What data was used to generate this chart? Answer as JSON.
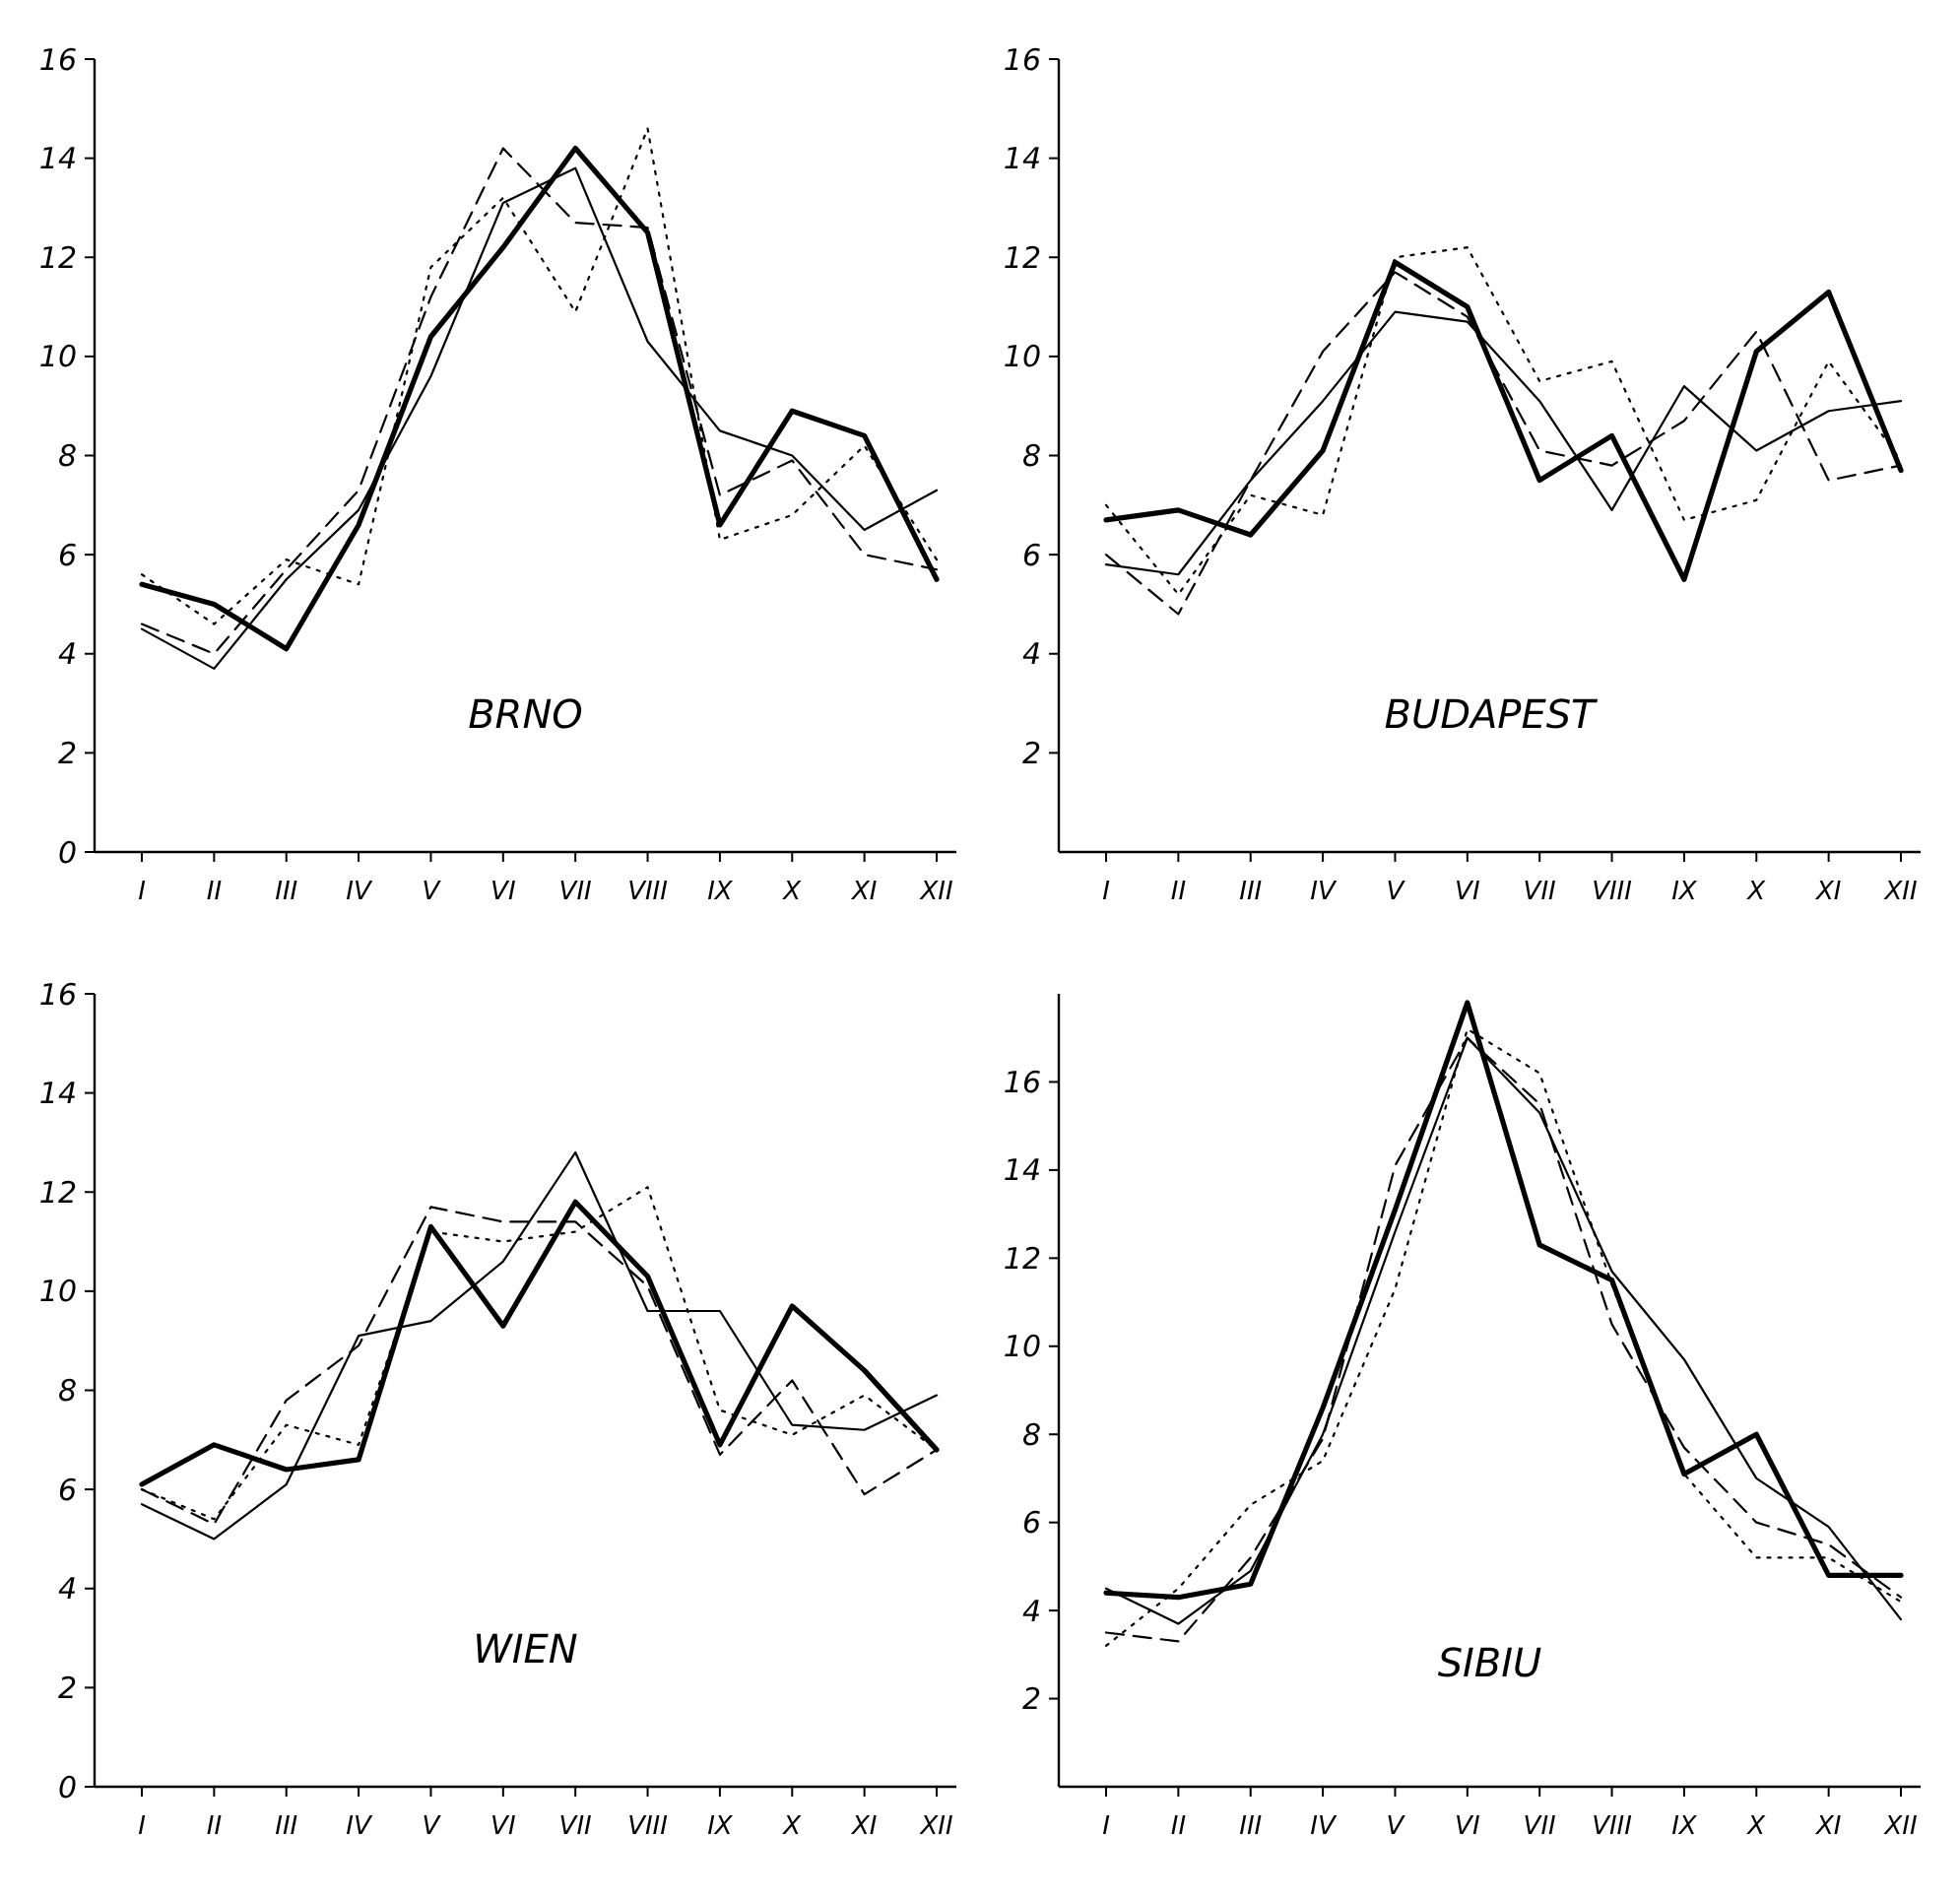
{
  "chart_data": [
    {
      "type": "line",
      "title": "BRNO",
      "categories": [
        "I",
        "II",
        "III",
        "IV",
        "V",
        "VI",
        "VII",
        "VIII",
        "IX",
        "X",
        "XI",
        "XII"
      ],
      "ylim": [
        0,
        16
      ],
      "yticks": [
        0,
        2,
        4,
        6,
        8,
        10,
        12,
        14,
        16
      ],
      "series": [
        {
          "color": "#000000",
          "line_style": "solid",
          "values": [
            5.4,
            5.0,
            4.1,
            6.6,
            10.4,
            12.2,
            14.2,
            12.5,
            6.6,
            8.9,
            8.4,
            5.5
          ]
        },
        {
          "color": "#000000",
          "line_style": "solid",
          "values": [
            4.5,
            3.7,
            5.5,
            6.9,
            9.6,
            13.1,
            13.8,
            10.3,
            8.5,
            8.0,
            6.5,
            7.3
          ]
        },
        {
          "color": "#000000",
          "line_style": "dashed",
          "values": [
            4.6,
            4.0,
            5.7,
            7.3,
            11.2,
            14.2,
            12.7,
            12.6,
            7.2,
            7.9,
            6.0,
            5.7
          ]
        },
        {
          "color": "#000000",
          "line_style": "dotted",
          "values": [
            5.6,
            4.6,
            5.9,
            5.4,
            11.8,
            13.2,
            10.9,
            14.6,
            6.3,
            6.8,
            8.2,
            5.9
          ]
        }
      ]
    },
    {
      "type": "line",
      "title": "BUDAPEST",
      "categories": [
        "I",
        "II",
        "III",
        "IV",
        "V",
        "VI",
        "VII",
        "VIII",
        "IX",
        "X",
        "XI",
        "XII"
      ],
      "ylim": [
        0,
        16
      ],
      "yticks": [
        2,
        4,
        6,
        8,
        10,
        12,
        14,
        16
      ],
      "series": [
        {
          "color": "#000000",
          "line_style": "solid",
          "values": [
            6.7,
            6.9,
            6.4,
            8.1,
            11.9,
            11.0,
            7.5,
            8.4,
            5.5,
            10.1,
            11.3,
            7.7
          ]
        },
        {
          "color": "#000000",
          "line_style": "solid",
          "values": [
            5.8,
            5.6,
            7.5,
            9.1,
            10.9,
            10.7,
            9.1,
            6.9,
            9.4,
            8.1,
            8.9,
            9.1
          ]
        },
        {
          "color": "#000000",
          "line_style": "dashed",
          "values": [
            6.0,
            4.8,
            7.5,
            10.1,
            11.7,
            10.8,
            8.1,
            7.8,
            8.7,
            10.5,
            7.5,
            7.8
          ]
        },
        {
          "color": "#000000",
          "line_style": "dotted",
          "values": [
            7.0,
            5.2,
            7.2,
            6.8,
            12.0,
            12.2,
            9.5,
            9.9,
            6.7,
            7.1,
            9.9,
            7.9
          ]
        }
      ]
    },
    {
      "type": "line",
      "title": "WIEN",
      "categories": [
        "I",
        "II",
        "III",
        "IV",
        "V",
        "VI",
        "VII",
        "VIII",
        "IX",
        "X",
        "XI",
        "XII"
      ],
      "ylim": [
        0,
        16
      ],
      "yticks": [
        0,
        2,
        4,
        6,
        8,
        10,
        12,
        14,
        16
      ],
      "series": [
        {
          "color": "#000000",
          "line_style": "solid",
          "values": [
            6.1,
            6.9,
            6.4,
            6.6,
            11.3,
            9.3,
            11.8,
            10.3,
            6.9,
            9.7,
            8.4,
            6.8
          ]
        },
        {
          "color": "#000000",
          "line_style": "solid",
          "values": [
            5.7,
            5.0,
            6.1,
            9.1,
            9.4,
            10.6,
            12.8,
            9.6,
            9.6,
            7.3,
            7.2,
            7.9
          ]
        },
        {
          "color": "#000000",
          "line_style": "dashed",
          "values": [
            6.0,
            5.3,
            7.8,
            8.9,
            11.7,
            11.4,
            11.4,
            10.1,
            6.7,
            8.2,
            5.9,
            6.8
          ]
        },
        {
          "color": "#000000",
          "line_style": "dotted",
          "values": [
            6.0,
            5.4,
            7.3,
            6.9,
            11.2,
            11.0,
            11.2,
            12.1,
            7.6,
            7.1,
            7.9,
            6.8
          ]
        }
      ]
    },
    {
      "type": "line",
      "title": "SIBIU",
      "categories": [
        "I",
        "II",
        "III",
        "IV",
        "V",
        "VI",
        "VII",
        "VIII",
        "IX",
        "X",
        "XI",
        "XII"
      ],
      "ylim": [
        0,
        18
      ],
      "yticks": [
        2,
        4,
        6,
        8,
        10,
        12,
        14,
        16
      ],
      "series": [
        {
          "color": "#000000",
          "line_style": "solid",
          "values": [
            4.4,
            4.3,
            4.6,
            8.6,
            13.1,
            17.8,
            12.3,
            11.5,
            7.1,
            8.0,
            4.8,
            4.8
          ]
        },
        {
          "color": "#000000",
          "line_style": "solid",
          "values": [
            4.5,
            3.7,
            4.9,
            8.0,
            12.6,
            17.0,
            15.3,
            11.7,
            9.7,
            7.0,
            5.9,
            3.8
          ]
        },
        {
          "color": "#000000",
          "line_style": "dashed",
          "values": [
            3.5,
            3.3,
            5.2,
            7.9,
            14.1,
            17.0,
            15.5,
            10.5,
            7.7,
            6.0,
            5.5,
            4.3
          ]
        },
        {
          "color": "#000000",
          "line_style": "dotted",
          "values": [
            3.2,
            4.5,
            6.4,
            7.4,
            11.3,
            17.2,
            16.2,
            11.4,
            7.1,
            5.2,
            5.2,
            4.2
          ]
        }
      ]
    }
  ]
}
